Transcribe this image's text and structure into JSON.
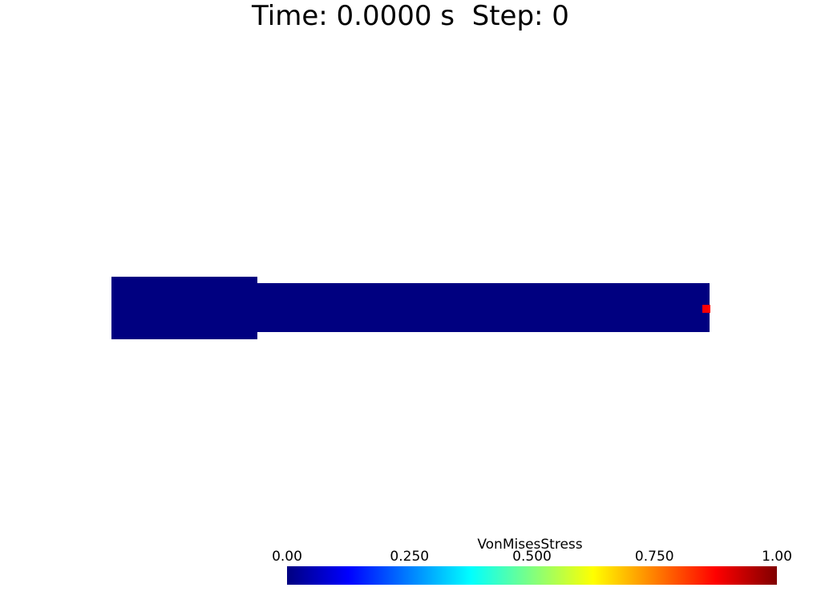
{
  "title": "Time: 0.0000 s  Step: 0",
  "colors": {
    "background": "#ffffff",
    "mesh_min_stress": "#000080",
    "marker": "#ff0000",
    "text": "#000000"
  },
  "colorbar": {
    "title": "VonMisesStress",
    "range": [
      0.0,
      1.0
    ],
    "colormap": "jet",
    "ticks": [
      {
        "value": 0.0,
        "label": "0.00"
      },
      {
        "value": 0.25,
        "label": "0.250"
      },
      {
        "value": 0.5,
        "label": "0.500"
      },
      {
        "value": 0.75,
        "label": "0.750"
      },
      {
        "value": 1.0,
        "label": "1.00"
      }
    ],
    "stops": [
      "#000080",
      "#0000ff",
      "#0080ff",
      "#00ffff",
      "#80ff80",
      "#ffff00",
      "#ff8000",
      "#ff0000",
      "#800000"
    ]
  }
}
